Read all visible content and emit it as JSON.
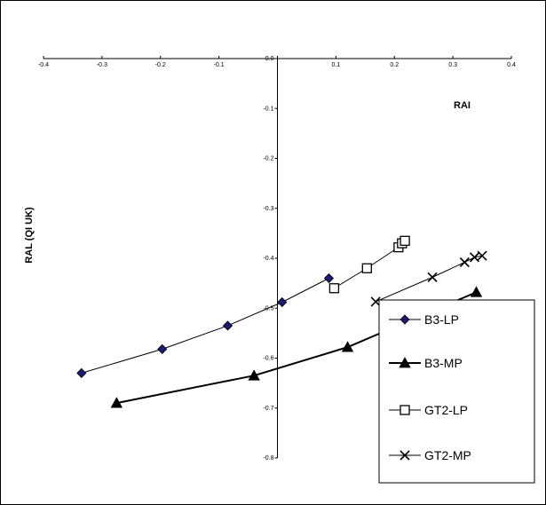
{
  "chart_data": {
    "type": "line",
    "title": "",
    "xlabel": "RAI",
    "ylabel": "RAL (QI UK)",
    "xlim": [
      -0.4,
      0.4
    ],
    "ylim": [
      -0.8,
      0.0
    ],
    "x_ticks": [
      "-0.4",
      "-0.3",
      "-0.2",
      "-0.1",
      "0.0",
      "0.1",
      "0.2",
      "0.3",
      "0.4"
    ],
    "y_ticks": [
      "0.0",
      "-0.1",
      "-0.2",
      "-0.3",
      "-0.4",
      "-0.5",
      "-0.6",
      "-0.7",
      "-0.8"
    ],
    "grid": false,
    "legend_position": "bottom-right",
    "series": [
      {
        "name": "B3-LP",
        "marker": "diamond",
        "color": "#1a1a6e",
        "points": [
          {
            "x": -0.335,
            "y": -0.63
          },
          {
            "x": -0.197,
            "y": -0.582
          },
          {
            "x": -0.085,
            "y": -0.535
          },
          {
            "x": 0.008,
            "y": -0.488
          },
          {
            "x": 0.088,
            "y": -0.44
          }
        ]
      },
      {
        "name": "B3-MP",
        "marker": "triangle",
        "color": "#000000",
        "points": [
          {
            "x": -0.275,
            "y": -0.69
          },
          {
            "x": -0.04,
            "y": -0.635
          },
          {
            "x": 0.12,
            "y": -0.578
          },
          {
            "x": 0.34,
            "y": -0.468
          }
        ]
      },
      {
        "name": "GT2-LP",
        "marker": "square",
        "color": "#000000",
        "points": [
          {
            "x": 0.097,
            "y": -0.46
          },
          {
            "x": 0.153,
            "y": -0.42
          },
          {
            "x": 0.207,
            "y": -0.378
          },
          {
            "x": 0.213,
            "y": -0.37
          },
          {
            "x": 0.218,
            "y": -0.365
          }
        ]
      },
      {
        "name": "GT2-MP",
        "marker": "x",
        "color": "#000000",
        "points": [
          {
            "x": 0.168,
            "y": -0.487
          },
          {
            "x": 0.265,
            "y": -0.438
          },
          {
            "x": 0.32,
            "y": -0.408
          },
          {
            "x": 0.337,
            "y": -0.398
          },
          {
            "x": 0.35,
            "y": -0.395
          }
        ]
      }
    ]
  }
}
